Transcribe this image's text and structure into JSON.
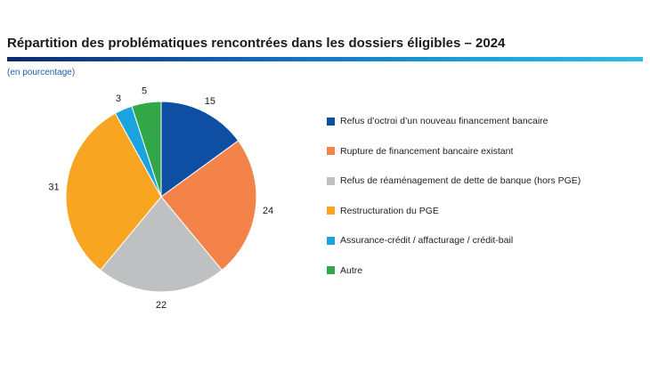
{
  "title": "Répartition des problématiques rencontrées dans les dossiers éligibles – 2024",
  "subtitle": "(en pourcentage)",
  "chart_data": {
    "type": "pie",
    "categories": [
      "Refus d’octroi d’un nouveau financement bancaire",
      "Rupture de financement bancaire existant",
      "Refus de réaménagement de dette de banque (hors PGE)",
      "Restructuration du PGE",
      "Assurance-crédit / affacturage / crédit-bail",
      "Autre"
    ],
    "values": [
      15,
      24,
      22,
      31,
      3,
      5
    ],
    "data_labels": [
      "15",
      "24",
      "22",
      "31",
      "3",
      "5"
    ],
    "colors": [
      "#0f4fa3",
      "#f4834a",
      "#bfc0c2",
      "#f8a521",
      "#1aa3de",
      "#33a64a"
    ],
    "start_angle_deg": 0,
    "direction": "clockwise",
    "legend_placement": "right"
  }
}
